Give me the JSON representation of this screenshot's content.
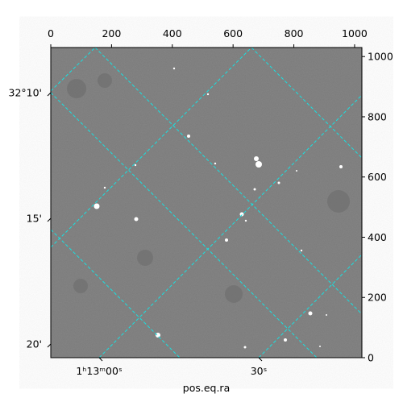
{
  "chart_data": {
    "type": "image",
    "xlabel": "pos.eq.ra",
    "xlim": [
      0,
      1024
    ],
    "xticks": [
      0,
      200,
      400,
      600,
      800,
      1000
    ],
    "ylim": [
      0,
      1030
    ],
    "y2ticks": [
      0,
      200,
      400,
      600,
      800,
      1000
    ],
    "ra_tick_labels": [
      "1ʰ13ᵐ00ˢ",
      "30ˢ"
    ],
    "dec_tick_labels": [
      "32°10'",
      "15'",
      "20'"
    ],
    "grid_color": "#19e0e0",
    "image_color": "#7a7a7a"
  }
}
